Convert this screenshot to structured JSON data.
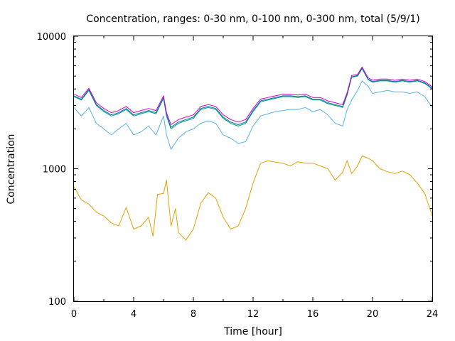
{
  "chart_data": {
    "type": "line",
    "title": "Concentration, ranges: 0-30 nm, 0-100 nm, 0-300 nm, total (5/9/1)",
    "xlabel": "Time [hour]",
    "ylabel": "Concentration",
    "xlim": [
      0,
      24
    ],
    "ylim": [
      100,
      10000
    ],
    "yscale": "log",
    "xticks": [
      0,
      4,
      8,
      12,
      16,
      20,
      24
    ],
    "xtick_labels": [
      "0",
      "4",
      "8",
      "12",
      "16",
      "20",
      "24"
    ],
    "yticks": [
      100,
      1000,
      10000
    ],
    "ytick_labels": [
      "100",
      "1000",
      "10000"
    ],
    "grid": false,
    "legend": "none",
    "series": [
      {
        "color": "#e69f00",
        "x": [
          0,
          0.5,
          1,
          1.5,
          2,
          2.5,
          3,
          3.5,
          4,
          4.5,
          5,
          5.3,
          5.6,
          6,
          6.2,
          6.5,
          6.8,
          7,
          7.5,
          8,
          8.5,
          9,
          9.5,
          10,
          10.5,
          11,
          11.5,
          12,
          12.5,
          13,
          13.5,
          14,
          14.5,
          15,
          15.5,
          16,
          16.5,
          17,
          17.5,
          18,
          18.3,
          18.6,
          19,
          19.3,
          19.7,
          20,
          20.5,
          21,
          21.5,
          22,
          22.5,
          23,
          23.5,
          24
        ],
        "y": [
          730,
          580,
          540,
          470,
          440,
          390,
          370,
          510,
          350,
          370,
          430,
          310,
          640,
          650,
          820,
          370,
          500,
          330,
          290,
          350,
          550,
          660,
          600,
          430,
          350,
          370,
          500,
          780,
          1100,
          1150,
          1120,
          1100,
          1050,
          1130,
          1100,
          1100,
          1050,
          1000,
          820,
          940,
          1150,
          920,
          1050,
          1250,
          1200,
          1150,
          1000,
          950,
          920,
          960,
          900,
          780,
          650,
          440
        ]
      },
      {
        "color": "#56b4e9",
        "x": [
          0,
          0.5,
          1,
          1.5,
          2,
          2.5,
          3,
          3.5,
          4,
          4.5,
          5,
          5.5,
          6,
          6.2,
          6.5,
          7,
          7.5,
          8,
          8.5,
          9,
          9.5,
          10,
          10.5,
          11,
          11.5,
          12,
          12.5,
          13,
          13.5,
          14,
          14.5,
          15,
          15.5,
          16,
          16.5,
          17,
          17.5,
          18,
          18.3,
          18.6,
          19,
          19.3,
          19.7,
          20,
          20.5,
          21,
          21.5,
          22,
          22.5,
          23,
          23.5,
          24
        ],
        "y": [
          2900,
          2500,
          2900,
          2200,
          2000,
          1800,
          2000,
          2200,
          1800,
          1900,
          2100,
          1800,
          2500,
          1800,
          1400,
          1700,
          1900,
          2000,
          2200,
          2300,
          2200,
          1800,
          1700,
          1550,
          1600,
          2100,
          2500,
          2600,
          2700,
          2750,
          2800,
          2800,
          2900,
          2700,
          2800,
          2550,
          2200,
          2100,
          2800,
          3300,
          3900,
          4600,
          4200,
          3700,
          3800,
          3900,
          3800,
          3800,
          3700,
          3800,
          3500,
          2900
        ]
      },
      {
        "color": "#009e73",
        "x": [
          0,
          0.5,
          1,
          1.5,
          2,
          2.5,
          3,
          3.5,
          4,
          4.5,
          5,
          5.5,
          6,
          6.2,
          6.5,
          7,
          7.5,
          8,
          8.5,
          9,
          9.5,
          10,
          10.5,
          11,
          11.5,
          12,
          12.5,
          13,
          13.5,
          14,
          14.5,
          15,
          15.5,
          16,
          16.5,
          17,
          17.5,
          18,
          18.3,
          18.6,
          19,
          19.3,
          19.7,
          20,
          20.5,
          21,
          21.5,
          22,
          22.5,
          23,
          23.5,
          24
        ],
        "y": [
          3500,
          3300,
          3900,
          3000,
          2700,
          2500,
          2600,
          2800,
          2500,
          2600,
          2700,
          2600,
          3400,
          2500,
          2000,
          2200,
          2300,
          2400,
          2800,
          2900,
          2800,
          2400,
          2200,
          2100,
          2200,
          2700,
          3200,
          3300,
          3400,
          3500,
          3500,
          3450,
          3500,
          3300,
          3300,
          3100,
          3000,
          2900,
          3600,
          4900,
          5000,
          5700,
          4700,
          4500,
          4600,
          4600,
          4500,
          4600,
          4500,
          4600,
          4400,
          4000
        ]
      },
      {
        "color": "#0072b2",
        "x": [
          0,
          0.5,
          1,
          1.5,
          2,
          2.5,
          3,
          3.5,
          4,
          4.5,
          5,
          5.5,
          6,
          6.2,
          6.5,
          7,
          7.5,
          8,
          8.5,
          9,
          9.5,
          10,
          10.5,
          11,
          11.5,
          12,
          12.5,
          13,
          13.5,
          14,
          14.5,
          15,
          15.5,
          16,
          16.5,
          17,
          17.5,
          18,
          18.3,
          18.6,
          19,
          19.3,
          19.7,
          20,
          20.5,
          21,
          21.5,
          22,
          22.5,
          23,
          23.5,
          24
        ],
        "y": [
          3550,
          3350,
          3950,
          3050,
          2750,
          2550,
          2650,
          2850,
          2550,
          2650,
          2750,
          2650,
          3450,
          2550,
          2050,
          2250,
          2350,
          2450,
          2850,
          2950,
          2850,
          2450,
          2250,
          2150,
          2250,
          2750,
          3250,
          3350,
          3450,
          3550,
          3550,
          3500,
          3550,
          3350,
          3350,
          3150,
          3050,
          2950,
          3650,
          4950,
          5050,
          5750,
          4750,
          4550,
          4650,
          4650,
          4550,
          4650,
          4550,
          4650,
          4450,
          4050
        ]
      },
      {
        "color": "#cc00cc",
        "x": [
          0,
          0.5,
          1,
          1.5,
          2,
          2.5,
          3,
          3.5,
          4,
          4.5,
          5,
          5.5,
          6,
          6.2,
          6.5,
          7,
          7.5,
          8,
          8.5,
          9,
          9.5,
          10,
          10.5,
          11,
          11.5,
          12,
          12.5,
          13,
          13.5,
          14,
          14.5,
          15,
          15.5,
          16,
          16.5,
          17,
          17.5,
          18,
          18.3,
          18.6,
          19,
          19.3,
          19.7,
          20,
          20.5,
          21,
          21.5,
          22,
          22.5,
          23,
          23.5,
          24
        ],
        "y": [
          3650,
          3450,
          4050,
          3150,
          2850,
          2650,
          2750,
          2950,
          2650,
          2750,
          2850,
          2750,
          3550,
          2650,
          2150,
          2350,
          2450,
          2550,
          2950,
          3050,
          2950,
          2550,
          2350,
          2250,
          2350,
          2850,
          3350,
          3450,
          3550,
          3650,
          3650,
          3600,
          3650,
          3450,
          3450,
          3250,
          3150,
          3050,
          3750,
          5050,
          5150,
          5850,
          4850,
          4650,
          4750,
          4750,
          4650,
          4750,
          4650,
          4750,
          4550,
          4150
        ]
      }
    ]
  }
}
